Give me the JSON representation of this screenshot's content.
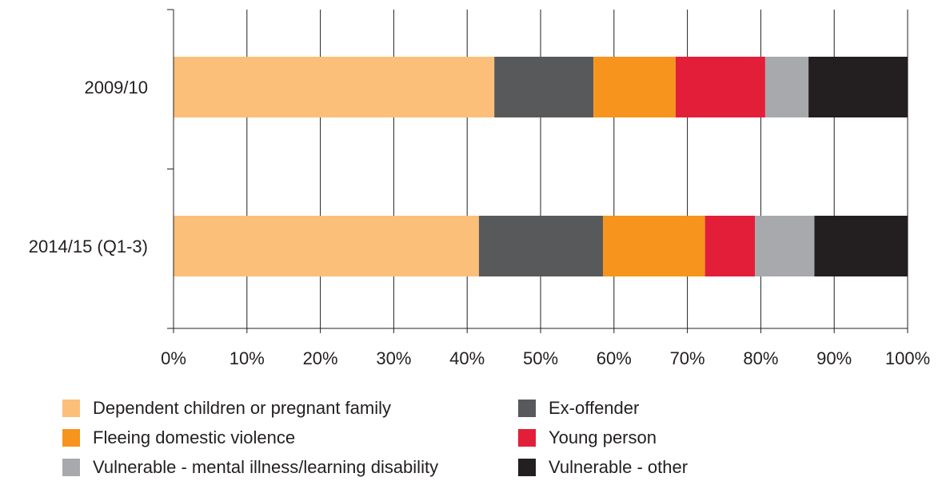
{
  "chart_data": {
    "type": "bar",
    "orientation": "horizontal",
    "stacked": true,
    "categories": [
      "2009/10",
      "2014/15 (Q1-3)"
    ],
    "series": [
      {
        "name": "Dependent children or pregnant family",
        "color": "#fbbf7a",
        "values": [
          43.7,
          41.6
        ]
      },
      {
        "name": "Ex-offender",
        "color": "#58595b",
        "values": [
          13.5,
          16.9
        ]
      },
      {
        "name": "Fleeing domestic violence",
        "color": "#f7941d",
        "values": [
          11.2,
          13.9
        ]
      },
      {
        "name": "Young person",
        "color": "#e31e38",
        "values": [
          12.2,
          6.8
        ]
      },
      {
        "name": "Vulnerable - mental illness/learning disability",
        "color": "#a7a9ac",
        "values": [
          5.9,
          8.1
        ]
      },
      {
        "name": "Vulnerable - other",
        "color": "#231f20",
        "values": [
          13.5,
          12.7
        ]
      }
    ],
    "x_ticks": [
      "0%",
      "10%",
      "20%",
      "30%",
      "40%",
      "50%",
      "60%",
      "70%",
      "80%",
      "90%",
      "100%"
    ],
    "xlim": [
      0,
      100
    ],
    "grid": true,
    "legend_position": "bottom",
    "title": "",
    "xlabel": "",
    "ylabel": ""
  }
}
